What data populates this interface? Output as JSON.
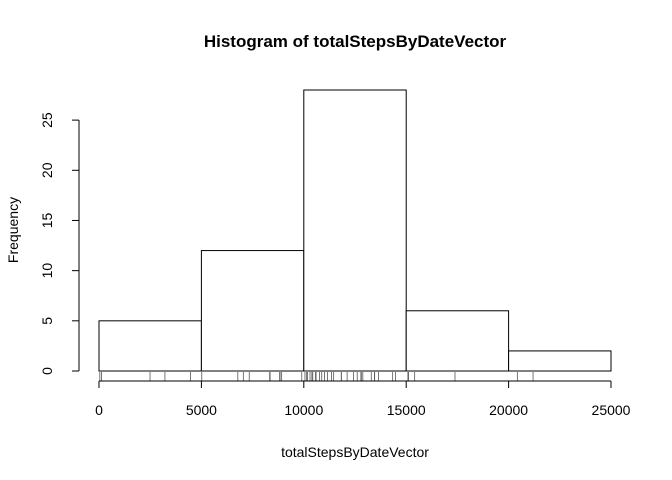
{
  "chart_data": {
    "type": "bar",
    "subtype": "histogram",
    "title": "Histogram of totalStepsByDateVector",
    "xlabel": "totalStepsByDateVector",
    "ylabel": "Frequency",
    "bins": [
      {
        "from": 0,
        "to": 5000,
        "count": 5
      },
      {
        "from": 5000,
        "to": 10000,
        "count": 12
      },
      {
        "from": 10000,
        "to": 15000,
        "count": 28
      },
      {
        "from": 15000,
        "to": 20000,
        "count": 6
      },
      {
        "from": 20000,
        "to": 25000,
        "count": 2
      }
    ],
    "xlim": [
      0,
      25000
    ],
    "ylim": [
      0,
      28
    ],
    "x_ticks": [
      0,
      5000,
      10000,
      15000,
      20000,
      25000
    ],
    "y_ticks": [
      0,
      5,
      10,
      15,
      20,
      25
    ],
    "grid": false,
    "rug": [
      41,
      126,
      2492,
      3219,
      4472,
      5018,
      6778,
      7047,
      7336,
      8334,
      8355,
      8821,
      8841,
      8918,
      9900,
      10056,
      10139,
      10183,
      10304,
      10395,
      10439,
      10571,
      10600,
      10765,
      10875,
      11015,
      11162,
      11352,
      11458,
      11829,
      11834,
      12116,
      12426,
      12608,
      12787,
      12811,
      12883,
      13294,
      13452,
      13460,
      13646,
      14339,
      14478,
      15084,
      15098,
      15110,
      15414,
      17382,
      20427,
      21194
    ]
  }
}
